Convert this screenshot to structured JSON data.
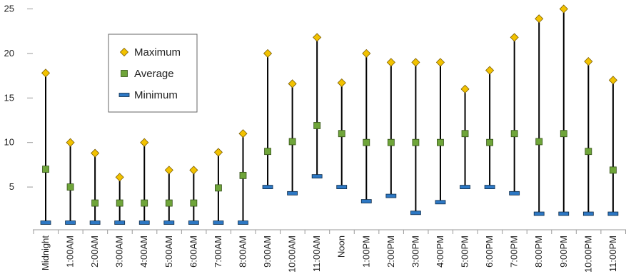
{
  "chart_data": {
    "type": "high-low-range",
    "categories": [
      "Midnight",
      "1:00AM",
      "2:00AM",
      "3:00AM",
      "4:00AM",
      "5:00AM",
      "6:00AM",
      "7:00AM",
      "8:00AM",
      "9:00AM",
      "10:00AM",
      "11:00AM",
      "Noon",
      "1:00PM",
      "2:00PM",
      "3:00PM",
      "4:00PM",
      "5:00PM",
      "6:00PM",
      "7:00PM",
      "8:00PM",
      "9:00PM",
      "10:00PM",
      "11:00PM"
    ],
    "y_ticks": [
      5,
      10,
      15,
      20,
      25
    ],
    "ylim": [
      0.2,
      25.2
    ],
    "title": "",
    "xlabel": "",
    "ylabel": "",
    "grid": false,
    "legend": {
      "placement": "top-left inside plot",
      "entries": [
        "Maximum",
        "Average",
        "Minimum"
      ]
    },
    "series": [
      {
        "name": "Maximum",
        "marker": "diamond",
        "color": "#f2c200",
        "values": [
          17.8,
          10,
          8.8,
          6.1,
          10,
          6.9,
          6.9,
          8.9,
          11,
          20,
          16.6,
          21.8,
          16.7,
          20,
          19,
          19,
          19,
          16,
          18.1,
          21.8,
          23.9,
          25,
          19.1,
          17
        ]
      },
      {
        "name": "Average",
        "marker": "square",
        "color": "#6fa53a",
        "values": [
          7,
          5,
          3.2,
          3.2,
          3.2,
          3.2,
          3.2,
          4.9,
          6.3,
          9,
          10.1,
          11.9,
          11,
          10,
          10,
          10,
          10,
          11,
          10,
          11,
          10.1,
          11,
          9,
          6.9
        ]
      },
      {
        "name": "Minimum",
        "marker": "bar",
        "color": "#2d78c4",
        "values": [
          1,
          1,
          1,
          1,
          1,
          1,
          1,
          1,
          1,
          5,
          4.3,
          6.2,
          5,
          3.4,
          4,
          2.1,
          3.3,
          5,
          5,
          4.3,
          2,
          2,
          2,
          2
        ]
      }
    ]
  }
}
